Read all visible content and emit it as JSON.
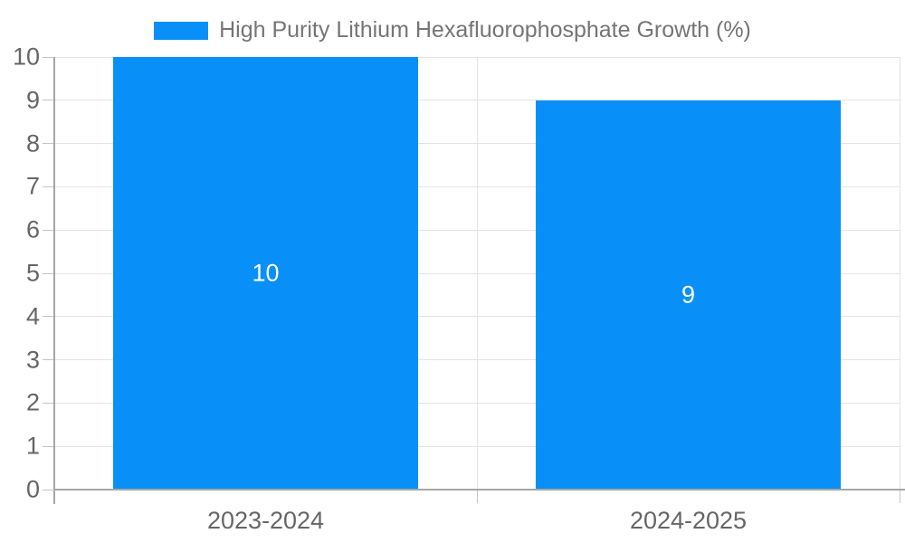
{
  "chart_data": {
    "type": "bar",
    "title": "",
    "legend": {
      "label": "High Purity Lithium Hexafluorophosphate Growth (%)",
      "position": "top"
    },
    "categories": [
      "2023-2024",
      "2024-2025"
    ],
    "values": [
      10,
      9
    ],
    "data_labels": [
      "10",
      "9"
    ],
    "yticks": [
      0,
      1,
      2,
      3,
      4,
      5,
      6,
      7,
      8,
      9,
      10
    ],
    "ylim": [
      0,
      10
    ],
    "xlabel": "",
    "ylabel": "",
    "grid": true,
    "bar_width_fraction": 0.72,
    "data_label_position": "inside-center",
    "colors": {
      "bar": "#0890F8",
      "legend_text": "#757575",
      "axis_label": "#666666",
      "axis_line": "#a6a6a6",
      "grid_line": "#e4e4e4",
      "tick_line": "#c4c4c4",
      "data_label": "#ffffff",
      "background": "#ffffff"
    }
  }
}
